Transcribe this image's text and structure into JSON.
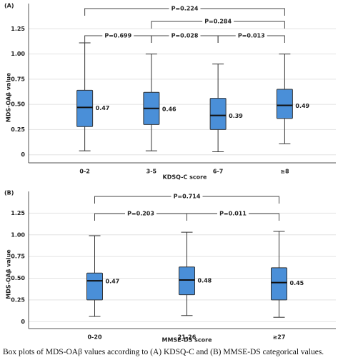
{
  "caption": "Box plots of MDS-OAβ values according to (A) KDSQ-C and (B) MMSE-DS categorical values.",
  "chart_data": [
    {
      "type": "box",
      "panel_label": "(A)",
      "y_label": "MDS-OAβ value",
      "x_label": "KDSQ-C score",
      "categories": [
        "0-2",
        "3-5",
        "6-7",
        "≥8"
      ],
      "min": [
        0.04,
        0.04,
        0.03,
        0.11
      ],
      "q1": [
        0.28,
        0.3,
        0.25,
        0.36
      ],
      "median": [
        0.47,
        0.46,
        0.39,
        0.49
      ],
      "q3": [
        0.64,
        0.62,
        0.56,
        0.65
      ],
      "max": [
        1.11,
        1.0,
        0.9,
        1.0
      ],
      "color": "#4a8fd8",
      "ylim": [
        -0.08,
        1.5
      ],
      "yticks": [
        0,
        0.25,
        {
          "value": 0.5,
          "label": "0.50"
        },
        0.75,
        {
          "value": 1.0,
          "label": "1.00"
        },
        1.25
      ],
      "grid": true,
      "annotations": [
        "P=0.224",
        "P=0.699",
        "P=0.284",
        "P=0.028",
        "P=0.013"
      ]
    },
    {
      "type": "box",
      "panel_label": "(B)",
      "y_label": "MDS-OAβ value",
      "x_label": "MMSE-DS score",
      "categories": [
        "0-20",
        "21-26",
        "≥27"
      ],
      "min": [
        0.06,
        0.07,
        0.05
      ],
      "q1": [
        0.25,
        0.31,
        0.25
      ],
      "median": [
        0.47,
        0.48,
        0.45
      ],
      "q3": [
        0.56,
        0.63,
        0.62
      ],
      "max": [
        0.99,
        1.03,
        1.04
      ],
      "color": "#4a8fd8",
      "ylim": [
        -0.08,
        1.5
      ],
      "yticks": [
        0,
        0.25,
        {
          "value": 0.5,
          "label": "0.50"
        },
        0.75,
        {
          "value": 1.0,
          "label": "1.00"
        },
        1.25
      ],
      "grid": true,
      "annotations": [
        "P=0.714",
        "P=0.203",
        "P=0.011"
      ]
    }
  ]
}
